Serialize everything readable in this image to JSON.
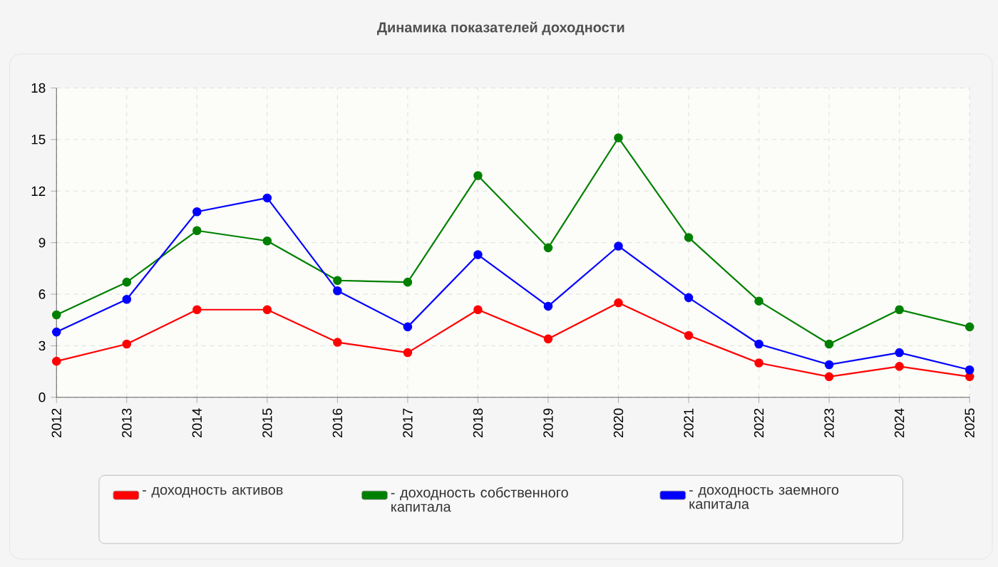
{
  "chart_data": {
    "type": "line",
    "title": "Динамика показателей доходности",
    "categories": [
      "2012",
      "2013",
      "2014",
      "2015",
      "2016",
      "2017",
      "2018",
      "2019",
      "2020",
      "2021",
      "2022",
      "2023",
      "2024",
      "2025"
    ],
    "series": [
      {
        "name": "- доходность активов",
        "color": "#ff0000",
        "values": [
          2.1,
          3.1,
          5.1,
          5.1,
          3.2,
          2.6,
          5.1,
          3.4,
          5.5,
          3.6,
          2.0,
          1.2,
          1.8,
          1.2
        ]
      },
      {
        "name": "- доходность собственного капитала",
        "color": "#008000",
        "values": [
          4.8,
          6.7,
          9.7,
          9.1,
          6.8,
          6.7,
          12.9,
          8.7,
          15.1,
          9.3,
          5.6,
          3.1,
          5.1,
          4.1
        ]
      },
      {
        "name": "- доходность заемного капитала",
        "color": "#0000ff",
        "values": [
          3.8,
          5.7,
          10.8,
          11.6,
          6.2,
          4.1,
          8.3,
          5.3,
          8.8,
          5.8,
          3.1,
          1.9,
          2.6,
          1.6
        ]
      }
    ],
    "ylim": [
      0,
      18
    ],
    "yticks": [
      0,
      3,
      6,
      9,
      12,
      15,
      18
    ],
    "grid": true,
    "legend": "bottom",
    "marker": "circle",
    "line_style": "solid"
  }
}
